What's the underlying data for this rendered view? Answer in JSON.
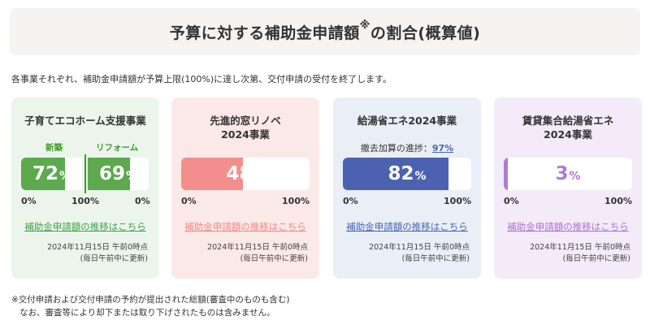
{
  "header": {
    "title": "予算に対する補助金申請額",
    "sup": "※",
    "title_tail": "の割合(概算値)"
  },
  "intro": "各事業それぞれ、補助金申請額が予算上限(100%)に達し次第、交付申請の受付を終了します。",
  "cards": [
    {
      "title": "子育てエコホーム支援事業",
      "sub_left": "新築",
      "sub_right": "リフォーム",
      "left_value": "72",
      "right_value": "69",
      "unit": "%",
      "left_fill": 0.72,
      "right_fill": 0.69,
      "scale_left_min": "0%",
      "scale_mid": "100%",
      "scale_right_min": "0%",
      "link": "補助金申請額の推移はこちら",
      "date_line1": "2024年11月15日 午前0時点",
      "date_line2": "(毎日午前中に更新)",
      "accent": "#3f9a2f",
      "link_color": "#46a14a",
      "bg": "#ebf5ec"
    },
    {
      "title_line1": "先進的窓リノベ",
      "title_line2": "2024事業",
      "value": "48",
      "unit": "%",
      "fill": 0.48,
      "scale_min": "0%",
      "scale_max": "100%",
      "link": "補助金申請額の推移はこちら",
      "date_line1": "2024年11月15日 午前0時点",
      "date_line2": "(毎日午前中に更新)",
      "accent": "#f28f8c",
      "link_color": "#f08a86",
      "bg": "#fbe9e8"
    },
    {
      "title": "給湯省エネ2024事業",
      "progress_label": "撤去加算の進捗：",
      "progress_value": "97%",
      "value": "82",
      "unit": "%",
      "fill": 0.82,
      "scale_min": "0%",
      "scale_max": "100%",
      "link": "補助金申請額の推移はこちら",
      "date_line1": "2024年11月15日 午前0時点",
      "date_line2": "(毎日午前中に更新)",
      "accent": "#4a62b0",
      "link_color": "#4a66b0",
      "bg": "#e9eef7"
    },
    {
      "title_line1": "賃貸集合給湯省エネ",
      "title_line2": "2024事業",
      "value": "3",
      "unit": "%",
      "fill": 0.03,
      "scale_min": "0%",
      "scale_max": "100%",
      "link": "補助金申請額の推移はこちら",
      "date_line1": "2024年11月15日 午前0時点",
      "date_line2": "(毎日午前中に更新)",
      "accent": "#b07ad6",
      "link_color": "#ad74d6",
      "bg": "#f3ebf8"
    }
  ],
  "footnote_line1": "※交付申請および交付申請の予約が提出された総額(審査中のものも含む)",
  "footnote_line2": "なお、審査等により却下または取り下げされたものは含みません。"
}
